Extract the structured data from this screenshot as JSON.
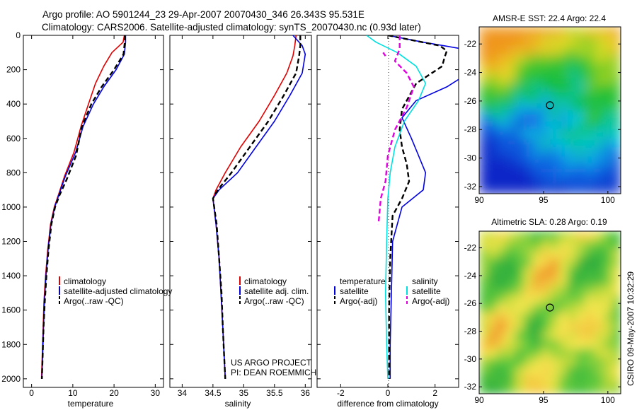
{
  "header": {
    "title_line1": "Argo profile: AO 5901244_23 29-Apr-2007 20070430_346 26.343S 95.531E",
    "title_line2": "Climatology: CARS2006. Satellite-adjusted climatology: synTS_20070430.nc (0.93d later)"
  },
  "footer": {
    "project_line1": "US ARGO PROJECT",
    "project_line2": "PI: DEAN ROEMMICH",
    "credit": "CSIRO 09-May-2007 10:32:29"
  },
  "colors": {
    "climatology": "#e00000",
    "satellite": "#0000e0",
    "argo": "#000000",
    "argo_salinity_diff": "#e000e0",
    "satellite_salinity_diff": "#00e0e0"
  },
  "chart_data": [
    {
      "type": "line",
      "id": "temperature",
      "xlabel": "temperature",
      "xlim": [
        -2,
        32
      ],
      "ylim": [
        2050,
        0
      ],
      "xticks": [
        0,
        10,
        20,
        30
      ],
      "yticks": [
        0,
        200,
        400,
        600,
        800,
        1000,
        1200,
        1400,
        1600,
        1800,
        2000
      ],
      "legend": [
        "climatology",
        "satellite-adjusted climatology",
        "Argo(..raw -QC)"
      ],
      "series": [
        {
          "name": "climatology",
          "role": "climatology",
          "style": "solid",
          "x": [
            22.5,
            22.2,
            19.5,
            17.5,
            15.5,
            13.8,
            12.0,
            10.3,
            8.0,
            6.5,
            5.5,
            4.6,
            3.9,
            3.4,
            3.0,
            2.8,
            2.6,
            2.4
          ],
          "y": [
            0,
            40,
            100,
            180,
            280,
            400,
            530,
            680,
            820,
            930,
            1000,
            1100,
            1250,
            1400,
            1550,
            1700,
            1850,
            2000
          ]
        },
        {
          "name": "satellite-adjusted climatology",
          "role": "satellite",
          "style": "solid",
          "x": [
            22.8,
            22.8,
            22.5,
            20.5,
            17.5,
            15.0,
            12.5,
            10.7,
            8.2,
            6.6,
            5.6,
            4.7,
            4.0,
            3.5,
            3.1,
            2.9,
            2.7,
            2.5
          ],
          "y": [
            0,
            40,
            110,
            200,
            300,
            400,
            530,
            680,
            820,
            930,
            1000,
            1100,
            1250,
            1400,
            1550,
            1700,
            1850,
            2000
          ]
        },
        {
          "name": "Argo(..raw -QC)",
          "role": "argo",
          "style": "dashed",
          "x": [
            22.6,
            22.6,
            22.3,
            20.0,
            17.0,
            14.5,
            12.2,
            10.8,
            8.5,
            6.8,
            5.7,
            4.8,
            4.1,
            3.6,
            3.2,
            2.9,
            2.7,
            2.5
          ],
          "y": [
            0,
            40,
            110,
            200,
            300,
            400,
            530,
            700,
            840,
            930,
            1000,
            1100,
            1250,
            1400,
            1550,
            1700,
            1850,
            2000
          ]
        }
      ]
    },
    {
      "type": "line",
      "id": "salinity",
      "xlabel": "salinity",
      "xlim": [
        33.8,
        36.1
      ],
      "ylim": [
        2050,
        0
      ],
      "xticks": [
        34,
        34.5,
        35,
        35.5,
        36
      ],
      "legend": [
        "climatology",
        "satellite adj. clim.",
        "Argo(..raw -QC)"
      ],
      "series": [
        {
          "name": "climatology",
          "role": "climatology",
          "style": "solid",
          "x": [
            35.85,
            35.83,
            35.8,
            35.7,
            35.5,
            35.25,
            34.95,
            34.7,
            34.55,
            34.5,
            34.55,
            34.6,
            34.63,
            34.66,
            34.68,
            34.7
          ],
          "y": [
            0,
            60,
            120,
            220,
            350,
            500,
            650,
            800,
            900,
            950,
            1100,
            1300,
            1500,
            1700,
            1850,
            2000
          ]
        },
        {
          "name": "satellite adj. clim.",
          "role": "satellite",
          "style": "solid",
          "x": [
            35.8,
            35.95,
            36.0,
            35.95,
            35.75,
            35.5,
            35.2,
            34.9,
            34.6,
            34.5,
            34.55,
            34.6,
            34.63,
            34.66,
            34.68,
            34.7
          ],
          "y": [
            0,
            60,
            110,
            220,
            350,
            500,
            650,
            800,
            900,
            950,
            1100,
            1300,
            1500,
            1700,
            1850,
            2000
          ]
        },
        {
          "name": "Argo(..raw -QC)",
          "role": "argo",
          "style": "dashed",
          "x": [
            35.92,
            35.92,
            35.9,
            35.85,
            35.65,
            35.4,
            35.1,
            34.8,
            34.58,
            34.5,
            34.56,
            34.6,
            34.64,
            34.66,
            34.68,
            34.7
          ],
          "y": [
            0,
            60,
            120,
            220,
            350,
            500,
            650,
            800,
            900,
            950,
            1100,
            1300,
            1500,
            1700,
            1850,
            2000
          ]
        }
      ]
    },
    {
      "type": "line",
      "id": "difference",
      "xlabel": "difference from climatology",
      "xlim": [
        -3,
        3
      ],
      "ylim": [
        2050,
        0
      ],
      "xticks": [
        -2,
        0,
        2
      ],
      "legend": [
        "temperature",
        "satellite",
        "Argo(-adj)",
        "salinity",
        "satellite",
        "Argo(-adj)"
      ],
      "series": [
        {
          "name": "temperature satellite",
          "role": "satellite",
          "style": "solid",
          "x": [
            0.0,
            1.5,
            3.2,
            3.4,
            3.3,
            2.5,
            1.2,
            0.6,
            1.0,
            1.3,
            1.6,
            1.5,
            0.6,
            0.2,
            0.15,
            0.1,
            0.1
          ],
          "y": [
            0,
            40,
            80,
            150,
            230,
            300,
            380,
            480,
            600,
            700,
            800,
            900,
            1000,
            1200,
            1500,
            1800,
            2000
          ]
        },
        {
          "name": "temperature Argo(-adj)",
          "role": "argo",
          "style": "dashed",
          "x": [
            0.0,
            2.2,
            2.5,
            2.4,
            2.3,
            1.2,
            0.6,
            0.5,
            0.6,
            0.8,
            0.9,
            0.6,
            0.2,
            0.1,
            0.05,
            0.05
          ],
          "y": [
            0,
            60,
            90,
            130,
            180,
            280,
            430,
            550,
            650,
            750,
            850,
            950,
            1050,
            1300,
            1600,
            2000
          ]
        },
        {
          "name": "salinity satellite",
          "role": "satellite_salinity_diff",
          "style": "solid",
          "x": [
            -0.9,
            -0.5,
            0.4,
            1.2,
            1.6,
            1.3,
            0.7,
            0.3,
            0.1,
            0.0,
            -0.05,
            -0.1,
            -0.05,
            0.0
          ],
          "y": [
            0,
            40,
            100,
            180,
            280,
            380,
            500,
            650,
            800,
            950,
            1200,
            1500,
            1800,
            2000
          ]
        },
        {
          "name": "salinity Argo(-adj)",
          "role": "argo_salinity_diff",
          "style": "dashed",
          "x": [
            0.5,
            0.5,
            0.3,
            0.8,
            1.1,
            0.8,
            0.3,
            0.0,
            -0.1,
            -0.3,
            -0.4
          ],
          "y": [
            0,
            80,
            150,
            220,
            300,
            420,
            550,
            700,
            850,
            950,
            1100
          ]
        },
        {
          "name": "salinity Argo(-adj) near surface",
          "role": "argo_salinity_diff",
          "style": "dashed",
          "x": [
            -0.2,
            -0.1
          ],
          "y": [
            100,
            120
          ]
        }
      ]
    },
    {
      "type": "heatmap",
      "id": "sst_map",
      "title": "AMSR-E SST: 22.4 Argo: 22.4",
      "xlim": [
        90,
        101
      ],
      "ylim": [
        -32.5,
        -20.8
      ],
      "xticks": [
        90,
        95,
        100
      ],
      "yticks": [
        -22,
        -24,
        -26,
        -28,
        -30,
        -32
      ],
      "marker": {
        "lon": 95.5,
        "lat": -26.3
      }
    },
    {
      "type": "heatmap",
      "id": "sla_map",
      "title": "Altimetric SLA: 0.28 Argo: 0.19",
      "xlim": [
        90,
        101
      ],
      "ylim": [
        -32.5,
        -20.8
      ],
      "xticks": [
        90,
        95,
        100
      ],
      "yticks": [
        -22,
        -24,
        -26,
        -28,
        -30,
        -32
      ],
      "marker": {
        "lon": 95.5,
        "lat": -26.3
      }
    }
  ]
}
